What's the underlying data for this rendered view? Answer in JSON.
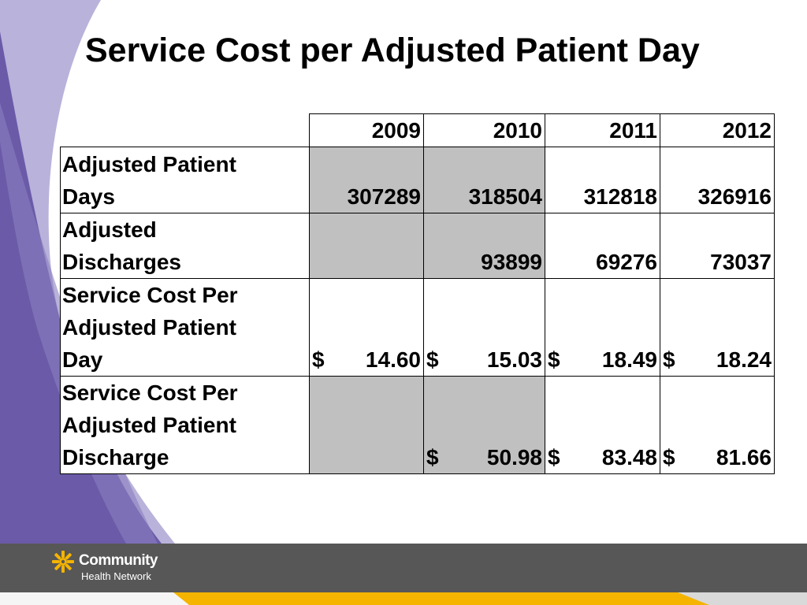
{
  "title": "Service Cost per Adjusted Patient Day",
  "table": {
    "headers": [
      "2009",
      "2010",
      "2011",
      "2012"
    ],
    "rows": [
      {
        "label": [
          "Adjusted Patient",
          "Days"
        ],
        "cells": [
          {
            "value": "307289",
            "shaded": true
          },
          {
            "value": "318504",
            "shaded": true
          },
          {
            "value": "312818",
            "shaded": false
          },
          {
            "value": "326916",
            "shaded": false
          }
        ]
      },
      {
        "label": [
          "Adjusted",
          "Discharges"
        ],
        "cells": [
          {
            "value": "",
            "shaded": true
          },
          {
            "value": "93899",
            "shaded": true
          },
          {
            "value": "69276",
            "shaded": false
          },
          {
            "value": "73037",
            "shaded": false
          }
        ]
      },
      {
        "label": [
          "Service Cost Per",
          "Adjusted Patient",
          "Day"
        ],
        "cells": [
          {
            "currency": "$",
            "value": "14.60",
            "shaded": false
          },
          {
            "currency": "$",
            "value": "15.03",
            "shaded": false
          },
          {
            "currency": "$",
            "value": "18.49",
            "shaded": false
          },
          {
            "currency": "$",
            "value": "18.24",
            "shaded": false
          }
        ]
      },
      {
        "label": [
          "Service Cost Per",
          "Adjusted Patient",
          "Discharge"
        ],
        "cells": [
          {
            "value": "",
            "shaded": true
          },
          {
            "currency": "$",
            "value": "50.98",
            "shaded": true
          },
          {
            "currency": "$",
            "value": "83.48",
            "shaded": false
          },
          {
            "currency": "$",
            "value": "81.66",
            "shaded": false
          }
        ]
      }
    ]
  },
  "footer": {
    "brand": "Community",
    "brand_sub": "Health Network",
    "logo_icon": "starburst-logo-icon",
    "bar_color": "#575757",
    "accent_color": "#f5b400",
    "swoosh_color": "#6a5aa8"
  }
}
